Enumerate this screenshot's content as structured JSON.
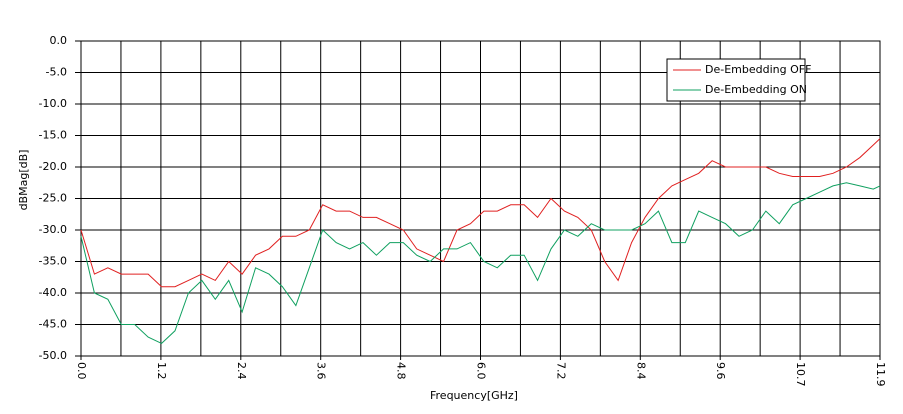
{
  "chart_data": {
    "type": "line",
    "x_label": "Frequency[GHz]",
    "y_label": "dBMag[dB]",
    "xlim": [
      0,
      11.9
    ],
    "ylim": [
      -50,
      0
    ],
    "xticks": [
      {
        "value": 0,
        "label": "0.0"
      },
      {
        "value": 1.19,
        "label": "1.2"
      },
      {
        "value": 2.38,
        "label": "2.4"
      },
      {
        "value": 3.57,
        "label": "3.6"
      },
      {
        "value": 4.76,
        "label": "4.8"
      },
      {
        "value": 5.95,
        "label": "6.0"
      },
      {
        "value": 7.14,
        "label": "7.2"
      },
      {
        "value": 8.33,
        "label": "8.4"
      },
      {
        "value": 9.52,
        "label": "9.6"
      },
      {
        "value": 10.71,
        "label": "10.7"
      },
      {
        "value": 11.9,
        "label": "11.9"
      }
    ],
    "yticks": [
      {
        "value": 0,
        "label": "0.0"
      },
      {
        "value": -5,
        "label": "-5.0"
      },
      {
        "value": -10,
        "label": "-10.0"
      },
      {
        "value": -15,
        "label": "-15.0"
      },
      {
        "value": -20,
        "label": "-20.0"
      },
      {
        "value": -25,
        "label": "-25.0"
      },
      {
        "value": -30,
        "label": "-30.0"
      },
      {
        "value": -35,
        "label": "-35.0"
      },
      {
        "value": -40,
        "label": "-40.0"
      },
      {
        "value": -45,
        "label": "-45.0"
      },
      {
        "value": -50,
        "label": "-50.0"
      }
    ],
    "grid": true,
    "legend": "upper right",
    "x": [
      0,
      0.2,
      0.4,
      0.6,
      0.8,
      1.0,
      1.2,
      1.4,
      1.6,
      1.8,
      2.0,
      2.2,
      2.4,
      2.6,
      2.8,
      3.0,
      3.2,
      3.4,
      3.6,
      3.8,
      4.0,
      4.2,
      4.4,
      4.6,
      4.8,
      5.0,
      5.2,
      5.4,
      5.6,
      5.8,
      6.0,
      6.2,
      6.4,
      6.6,
      6.8,
      7.0,
      7.2,
      7.4,
      7.6,
      7.8,
      8.0,
      8.2,
      8.4,
      8.6,
      8.8,
      9.0,
      9.2,
      9.4,
      9.6,
      9.8,
      10.0,
      10.2,
      10.4,
      10.6,
      10.8,
      11.0,
      11.2,
      11.4,
      11.6,
      11.8,
      11.9
    ],
    "series": [
      {
        "name": "De-Embedding OFF",
        "color": "#e02020",
        "values": [
          -30,
          -37,
          -36,
          -37,
          -37,
          -37,
          -39,
          -39,
          -38,
          -37,
          -38,
          -35,
          -37,
          -34,
          -33,
          -31,
          -31,
          -30,
          -26,
          -27,
          -27,
          -28,
          -28,
          -29,
          -30,
          -33,
          -34,
          -35,
          -30,
          -29,
          -27,
          -27,
          -26,
          -26,
          -28,
          -25,
          -27,
          -28,
          -30,
          -35,
          -38,
          -32,
          -28,
          -25,
          -23,
          -22,
          -21,
          -19,
          -20,
          -20,
          -20,
          -20,
          -21,
          -21.5,
          -21.5,
          -21.5,
          -21,
          -20,
          -18.5,
          -16.5,
          -15.5
        ]
      },
      {
        "name": "De-Embedding ON",
        "color": "#10a060",
        "values": [
          -31,
          -40,
          -41,
          -45,
          -45,
          -47,
          -48,
          -46,
          -40,
          -38,
          -41,
          -38,
          -43,
          -36,
          -37,
          -39,
          -42,
          -36,
          -30,
          -32,
          -33,
          -32,
          -34,
          -32,
          -32,
          -34,
          -35,
          -33,
          -33,
          -32,
          -35,
          -36,
          -34,
          -34,
          -38,
          -33,
          -30,
          -31,
          -29,
          -30,
          -30,
          -30,
          -29,
          -27,
          -32,
          -32,
          -27,
          -28,
          -29,
          -31,
          -30,
          -27,
          -29,
          -26,
          -25,
          -24,
          -23,
          -22.5,
          -23,
          -23.5,
          -23
        ]
      }
    ]
  }
}
